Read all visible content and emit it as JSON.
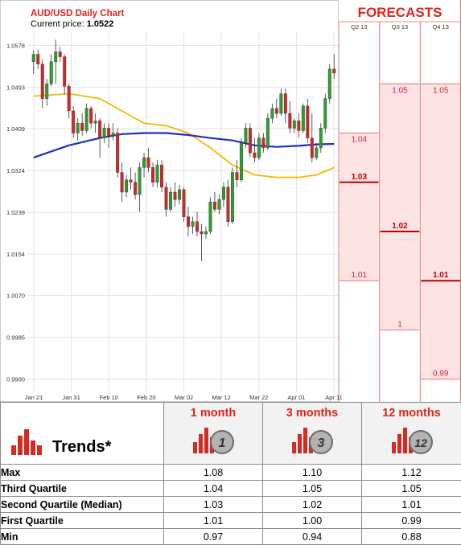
{
  "header": {
    "title": "AUD/USD Daily Chart",
    "price_label": "Current price:",
    "price_value": "1.0522"
  },
  "colors": {
    "bull": "#2ca02c",
    "bear": "#d62728",
    "ma_fast": "#f5b800",
    "ma_slow": "#1f2fbf",
    "accent": "#e2231a",
    "forecast_bg": "#fde3e3"
  },
  "chart_data": [
    {
      "type": "candlestick",
      "title": "AUD/USD Daily Chart",
      "ylim": [
        0.9875,
        1.0605
      ],
      "y_ticks": [
        "1.0578",
        "1.0493",
        "1.0409",
        "1.0324",
        "1.0239",
        "1.0154",
        "1.0070",
        "0.9985",
        "0.9900"
      ],
      "x_ticks": [
        "Jan 21",
        "Jan 31",
        "Feb 10",
        "Feb 20",
        "Mar 02",
        "Mar 12",
        "Mar 22",
        "Apr 01",
        "Apr 11"
      ],
      "candles": [
        {
          "o": 1.0545,
          "h": 1.0568,
          "l": 1.052,
          "c": 1.056
        },
        {
          "o": 1.056,
          "h": 1.057,
          "l": 1.053,
          "c": 1.054
        },
        {
          "o": 1.054,
          "h": 1.055,
          "l": 1.045,
          "c": 1.047
        },
        {
          "o": 1.047,
          "h": 1.051,
          "l": 1.0455,
          "c": 1.05
        },
        {
          "o": 1.05,
          "h": 1.056,
          "l": 1.0495,
          "c": 1.0545
        },
        {
          "o": 1.0545,
          "h": 1.059,
          "l": 1.05,
          "c": 1.0565
        },
        {
          "o": 1.0565,
          "h": 1.0575,
          "l": 1.0545,
          "c": 1.0555
        },
        {
          "o": 1.0555,
          "h": 1.056,
          "l": 1.048,
          "c": 1.0495
        },
        {
          "o": 1.0495,
          "h": 1.05,
          "l": 1.043,
          "c": 1.0445
        },
        {
          "o": 1.0445,
          "h": 1.0455,
          "l": 1.039,
          "c": 1.04
        },
        {
          "o": 1.04,
          "h": 1.043,
          "l": 1.0385,
          "c": 1.042
        },
        {
          "o": 1.042,
          "h": 1.044,
          "l": 1.0395,
          "c": 1.0405
        },
        {
          "o": 1.0405,
          "h": 1.046,
          "l": 1.04,
          "c": 1.045
        },
        {
          "o": 1.045,
          "h": 1.0455,
          "l": 1.041,
          "c": 1.042
        },
        {
          "o": 1.042,
          "h": 1.044,
          "l": 1.04,
          "c": 1.0425
        },
        {
          "o": 1.0425,
          "h": 1.043,
          "l": 1.035,
          "c": 1.039
        },
        {
          "o": 1.039,
          "h": 1.042,
          "l": 1.038,
          "c": 1.041
        },
        {
          "o": 1.041,
          "h": 1.042,
          "l": 1.037,
          "c": 1.0395
        },
        {
          "o": 1.0395,
          "h": 1.042,
          "l": 1.0385,
          "c": 1.04
        },
        {
          "o": 1.04,
          "h": 1.041,
          "l": 1.031,
          "c": 1.032
        },
        {
          "o": 1.032,
          "h": 1.034,
          "l": 1.026,
          "c": 1.028
        },
        {
          "o": 1.028,
          "h": 1.0315,
          "l": 1.027,
          "c": 1.0305
        },
        {
          "o": 1.0305,
          "h": 1.033,
          "l": 1.0285,
          "c": 1.03
        },
        {
          "o": 1.03,
          "h": 1.032,
          "l": 1.0265,
          "c": 1.0275
        },
        {
          "o": 1.0275,
          "h": 1.034,
          "l": 1.024,
          "c": 1.033
        },
        {
          "o": 1.033,
          "h": 1.036,
          "l": 1.031,
          "c": 1.035
        },
        {
          "o": 1.035,
          "h": 1.037,
          "l": 1.032,
          "c": 1.033
        },
        {
          "o": 1.033,
          "h": 1.034,
          "l": 1.029,
          "c": 1.03
        },
        {
          "o": 1.03,
          "h": 1.0345,
          "l": 1.029,
          "c": 1.0335
        },
        {
          "o": 1.0335,
          "h": 1.0345,
          "l": 1.028,
          "c": 1.029
        },
        {
          "o": 1.029,
          "h": 1.03,
          "l": 1.023,
          "c": 1.0245
        },
        {
          "o": 1.0245,
          "h": 1.029,
          "l": 1.024,
          "c": 1.028
        },
        {
          "o": 1.028,
          "h": 1.03,
          "l": 1.025,
          "c": 1.0265
        },
        {
          "o": 1.0265,
          "h": 1.0295,
          "l": 1.0255,
          "c": 1.0285
        },
        {
          "o": 1.0285,
          "h": 1.029,
          "l": 1.022,
          "c": 1.023
        },
        {
          "o": 1.023,
          "h": 1.025,
          "l": 1.019,
          "c": 1.021
        },
        {
          "o": 1.021,
          "h": 1.023,
          "l": 1.0195,
          "c": 1.022
        },
        {
          "o": 1.022,
          "h": 1.024,
          "l": 1.019,
          "c": 1.02
        },
        {
          "o": 1.02,
          "h": 1.0215,
          "l": 1.014,
          "c": 1.0195
        },
        {
          "o": 1.0195,
          "h": 1.021,
          "l": 1.0185,
          "c": 1.02
        },
        {
          "o": 1.02,
          "h": 1.027,
          "l": 1.0195,
          "c": 1.026
        },
        {
          "o": 1.026,
          "h": 1.028,
          "l": 1.024,
          "c": 1.0245
        },
        {
          "o": 1.0245,
          "h": 1.0275,
          "l": 1.0235,
          "c": 1.0265
        },
        {
          "o": 1.0265,
          "h": 1.03,
          "l": 1.025,
          "c": 1.029
        },
        {
          "o": 1.029,
          "h": 1.0305,
          "l": 1.021,
          "c": 1.022
        },
        {
          "o": 1.022,
          "h": 1.033,
          "l": 1.0215,
          "c": 1.032
        },
        {
          "o": 1.032,
          "h": 1.0345,
          "l": 1.029,
          "c": 1.0305
        },
        {
          "o": 1.0305,
          "h": 1.039,
          "l": 1.03,
          "c": 1.038
        },
        {
          "o": 1.038,
          "h": 1.042,
          "l": 1.037,
          "c": 1.041
        },
        {
          "o": 1.041,
          "h": 1.042,
          "l": 1.035,
          "c": 1.036
        },
        {
          "o": 1.036,
          "h": 1.039,
          "l": 1.034,
          "c": 1.035
        },
        {
          "o": 1.035,
          "h": 1.04,
          "l": 1.0345,
          "c": 1.039
        },
        {
          "o": 1.039,
          "h": 1.04,
          "l": 1.036,
          "c": 1.037
        },
        {
          "o": 1.037,
          "h": 1.044,
          "l": 1.0365,
          "c": 1.043
        },
        {
          "o": 1.043,
          "h": 1.046,
          "l": 1.042,
          "c": 1.045
        },
        {
          "o": 1.045,
          "h": 1.047,
          "l": 1.043,
          "c": 1.044
        },
        {
          "o": 1.044,
          "h": 1.049,
          "l": 1.0435,
          "c": 1.048
        },
        {
          "o": 1.048,
          "h": 1.049,
          "l": 1.042,
          "c": 1.044
        },
        {
          "o": 1.044,
          "h": 1.0465,
          "l": 1.04,
          "c": 1.041
        },
        {
          "o": 1.041,
          "h": 1.043,
          "l": 1.04,
          "c": 1.0425
        },
        {
          "o": 1.0425,
          "h": 1.044,
          "l": 1.039,
          "c": 1.0405
        },
        {
          "o": 1.0405,
          "h": 1.046,
          "l": 1.04,
          "c": 1.0455
        },
        {
          "o": 1.0455,
          "h": 1.047,
          "l": 1.038,
          "c": 1.039
        },
        {
          "o": 1.039,
          "h": 1.044,
          "l": 1.034,
          "c": 1.035
        },
        {
          "o": 1.035,
          "h": 1.038,
          "l": 1.0345,
          "c": 1.037
        },
        {
          "o": 1.037,
          "h": 1.042,
          "l": 1.036,
          "c": 1.041
        },
        {
          "o": 1.041,
          "h": 1.048,
          "l": 1.04,
          "c": 1.047
        },
        {
          "o": 1.047,
          "h": 1.054,
          "l": 1.046,
          "c": 1.053
        },
        {
          "o": 1.053,
          "h": 1.056,
          "l": 1.051,
          "c": 1.0522
        }
      ],
      "moving_averages": [
        {
          "color": "ma_fast",
          "points": [
            [
              0,
              1.0475
            ],
            [
              8,
              1.048
            ],
            [
              15,
              1.047
            ],
            [
              20,
              1.0445
            ],
            [
              25,
              1.042
            ],
            [
              30,
              1.0415
            ],
            [
              35,
              1.04
            ],
            [
              40,
              1.037
            ],
            [
              45,
              1.0335
            ],
            [
              50,
              1.0315
            ],
            [
              55,
              1.031
            ],
            [
              60,
              1.031
            ],
            [
              64,
              1.0315
            ],
            [
              68,
              1.033
            ]
          ]
        },
        {
          "color": "ma_slow",
          "points": [
            [
              0,
              1.035
            ],
            [
              8,
              1.0375
            ],
            [
              15,
              1.039
            ],
            [
              20,
              1.0398
            ],
            [
              25,
              1.04
            ],
            [
              30,
              1.04
            ],
            [
              35,
              1.0396
            ],
            [
              40,
              1.039
            ],
            [
              45,
              1.0385
            ],
            [
              50,
              1.0375
            ],
            [
              55,
              1.0372
            ],
            [
              60,
              1.0374
            ],
            [
              64,
              1.0377
            ],
            [
              68,
              1.0378
            ]
          ]
        }
      ]
    },
    {
      "type": "forecast-boxes",
      "title": "FORECASTS",
      "periods": [
        {
          "label": "Q2 13",
          "high": "1.04",
          "median": "1.03",
          "low": "1.01",
          "high_v": 1.04,
          "median_v": 1.03,
          "low_v": 1.01
        },
        {
          "label": "Q3 13",
          "high": "1.05",
          "median": "1.02",
          "low": "1",
          "high_v": 1.05,
          "median_v": 1.02,
          "low_v": 1.0
        },
        {
          "label": "Q4 13",
          "high": "1.05",
          "median": "1.01",
          "low": "0.99",
          "high_v": 1.05,
          "median_v": 1.01,
          "low_v": 0.99
        }
      ]
    },
    {
      "type": "table",
      "title": "Trends*",
      "columns": [
        "1 month",
        "3 months",
        "12 months"
      ],
      "column_badges": [
        "1",
        "3",
        "12"
      ],
      "rows": [
        {
          "label": "Max",
          "values": [
            "1.08",
            "1.10",
            "1.12"
          ]
        },
        {
          "label": "Third Quartile",
          "values": [
            "1.04",
            "1.05",
            "1.05"
          ]
        },
        {
          "label": "Second Quartile (Median)",
          "values": [
            "1.03",
            "1.02",
            "1.01"
          ]
        },
        {
          "label": "First Quartile",
          "values": [
            "1.01",
            "1.00",
            "0.99"
          ]
        },
        {
          "label": "Min",
          "values": [
            "0.97",
            "0.94",
            "0.88"
          ]
        }
      ]
    }
  ]
}
